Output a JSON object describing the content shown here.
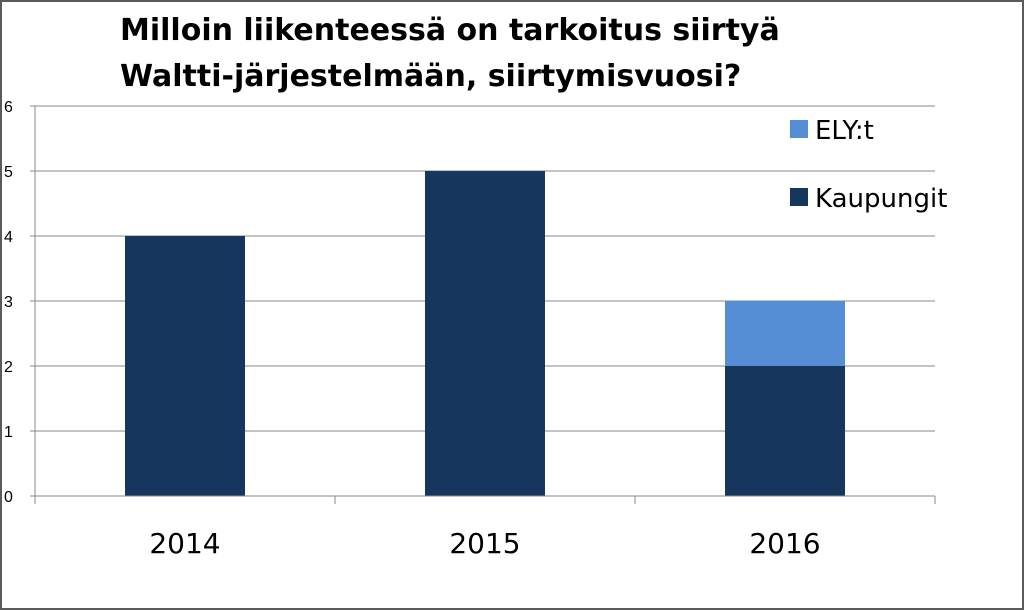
{
  "chart_data": {
    "type": "bar",
    "stacked": true,
    "title": "Milloin liikenteessä on tarkoitus siirtyä Waltti-järjestelmään, siirtymisvuosi?",
    "categories": [
      "2014",
      "2015",
      "2016"
    ],
    "series": [
      {
        "name": "Kaupungit",
        "values": [
          4,
          5,
          2
        ],
        "color": "#17365d"
      },
      {
        "name": "ELY:t",
        "values": [
          0,
          0,
          1
        ],
        "color": "#558ed5"
      }
    ],
    "ylim": [
      0,
      6
    ],
    "yticks": [
      "0",
      "1",
      "2",
      "3",
      "4",
      "5",
      "6"
    ],
    "grid": true,
    "legend_position": "right",
    "legend_order": [
      "ELY:t",
      "Kaupungit"
    ]
  }
}
